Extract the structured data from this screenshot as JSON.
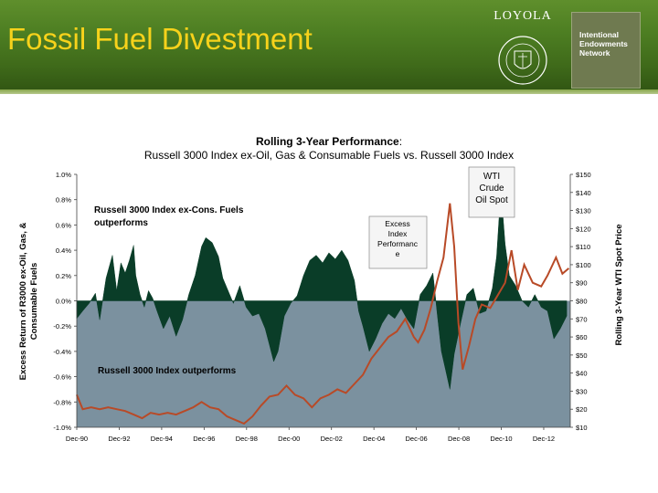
{
  "slide": {
    "title": "Fossil Fuel Divestment",
    "logo_text": "LOYOLA",
    "partner_text": "Intentional\nEndowments\nNetwork"
  },
  "colors": {
    "banner": "#4d7e22",
    "title": "#f7d21b",
    "excess_area": "#0a3d28",
    "plot_bg": "#7b919f",
    "oil_line": "#b84a27"
  },
  "chart_data": {
    "type": "area",
    "title_bold": "Rolling 3-Year Performance",
    "title_rest": ":",
    "subtitle": "Russell 3000 Index ex-Oil, Gas & Consumable Fuels vs. Russell 3000 Index",
    "ylabel_left": "Excess Return of R3000 ex-Oil, Gas, & Consumable Fuels",
    "ylabel_right": "Rolling 3-Year WTI Spot Price",
    "x_ticks": [
      "Dec-90",
      "Dec-92",
      "Dec-94",
      "Dec-96",
      "Dec-98",
      "Dec-00",
      "Dec-02",
      "Dec-04",
      "Dec-06",
      "Dec-08",
      "Dec-10",
      "Dec-12"
    ],
    "x_range": [
      1990.92,
      2014.17
    ],
    "y_left_ticks": [
      "1.0%",
      "0.8%",
      "0.6%",
      "0.4%",
      "0.2%",
      "0.0%",
      "-0.2%",
      "-0.4%",
      "-0.6%",
      "-0.8%",
      "-1.0%"
    ],
    "y_left_range": [
      -1.0,
      1.0
    ],
    "y_right_ticks": [
      "$150",
      "$140",
      "$130",
      "$120",
      "$110",
      "$100",
      "$90",
      "$80",
      "$70",
      "$60",
      "$50",
      "$40",
      "$30",
      "$20",
      "$10"
    ],
    "y_right_range": [
      10,
      150
    ],
    "annotations": {
      "upper_region": "Russell 3000 Index ex-Cons. Fuels outperforms",
      "lower_region": "Russell 3000 Index outperforms",
      "series_excess_box": "Excess Index Performance",
      "series_oil_box": "WTI Crude Oil Spot"
    },
    "series": [
      {
        "name": "Excess Index Performance",
        "axis": "left",
        "points": [
          [
            1990.92,
            -0.14
          ],
          [
            1991.2,
            -0.08
          ],
          [
            1991.5,
            -0.02
          ],
          [
            1991.8,
            0.06
          ],
          [
            1992.0,
            -0.15
          ],
          [
            1992.3,
            0.18
          ],
          [
            1992.6,
            0.36
          ],
          [
            1992.8,
            0.08
          ],
          [
            1993.0,
            0.3
          ],
          [
            1993.2,
            0.22
          ],
          [
            1993.4,
            0.32
          ],
          [
            1993.6,
            0.44
          ],
          [
            1993.7,
            0.2
          ],
          [
            1993.9,
            0.05
          ],
          [
            1994.1,
            -0.05
          ],
          [
            1994.3,
            0.08
          ],
          [
            1994.5,
            0.02
          ],
          [
            1994.7,
            -0.08
          ],
          [
            1995.0,
            -0.22
          ],
          [
            1995.3,
            -0.12
          ],
          [
            1995.6,
            -0.28
          ],
          [
            1995.9,
            -0.15
          ],
          [
            1996.2,
            0.05
          ],
          [
            1996.5,
            0.2
          ],
          [
            1996.8,
            0.43
          ],
          [
            1997.0,
            0.5
          ],
          [
            1997.3,
            0.46
          ],
          [
            1997.6,
            0.35
          ],
          [
            1997.8,
            0.18
          ],
          [
            1998.0,
            0.1
          ],
          [
            1998.3,
            -0.02
          ],
          [
            1998.6,
            0.12
          ],
          [
            1998.9,
            -0.05
          ],
          [
            1999.2,
            -0.12
          ],
          [
            1999.5,
            -0.1
          ],
          [
            1999.8,
            -0.22
          ],
          [
            2000.0,
            -0.35
          ],
          [
            2000.2,
            -0.48
          ],
          [
            2000.4,
            -0.4
          ],
          [
            2000.7,
            -0.12
          ],
          [
            2001.0,
            -0.02
          ],
          [
            2001.3,
            0.04
          ],
          [
            2001.6,
            0.2
          ],
          [
            2001.9,
            0.32
          ],
          [
            2002.2,
            0.36
          ],
          [
            2002.5,
            0.3
          ],
          [
            2002.8,
            0.38
          ],
          [
            2003.1,
            0.33
          ],
          [
            2003.4,
            0.4
          ],
          [
            2003.7,
            0.32
          ],
          [
            2004.0,
            0.16
          ],
          [
            2004.2,
            -0.08
          ],
          [
            2004.4,
            -0.2
          ],
          [
            2004.7,
            -0.4
          ],
          [
            2005.0,
            -0.3
          ],
          [
            2005.3,
            -0.18
          ],
          [
            2005.6,
            -0.1
          ],
          [
            2005.9,
            -0.14
          ],
          [
            2006.2,
            -0.06
          ],
          [
            2006.5,
            -0.15
          ],
          [
            2006.8,
            -0.22
          ],
          [
            2007.1,
            0.05
          ],
          [
            2007.4,
            0.12
          ],
          [
            2007.7,
            0.22
          ],
          [
            2007.9,
            -0.1
          ],
          [
            2008.1,
            -0.4
          ],
          [
            2008.3,
            -0.55
          ],
          [
            2008.5,
            -0.7
          ],
          [
            2008.7,
            -0.42
          ],
          [
            2009.0,
            -0.18
          ],
          [
            2009.3,
            0.05
          ],
          [
            2009.6,
            0.1
          ],
          [
            2009.9,
            -0.1
          ],
          [
            2010.2,
            -0.08
          ],
          [
            2010.5,
            0.1
          ],
          [
            2010.7,
            0.35
          ],
          [
            2010.9,
            0.88
          ],
          [
            2011.1,
            0.45
          ],
          [
            2011.3,
            0.2
          ],
          [
            2011.6,
            0.12
          ],
          [
            2011.9,
            0.0
          ],
          [
            2012.2,
            -0.05
          ],
          [
            2012.5,
            0.05
          ],
          [
            2012.8,
            -0.05
          ],
          [
            2013.1,
            -0.08
          ],
          [
            2013.4,
            -0.3
          ],
          [
            2013.7,
            -0.22
          ],
          [
            2014.0,
            -0.12
          ]
        ]
      },
      {
        "name": "WTI Crude Oil Spot",
        "axis": "right",
        "points": [
          [
            1990.92,
            28
          ],
          [
            1991.2,
            20
          ],
          [
            1991.6,
            21
          ],
          [
            1992.0,
            20
          ],
          [
            1992.4,
            21
          ],
          [
            1992.8,
            20
          ],
          [
            1993.2,
            19
          ],
          [
            1993.6,
            17
          ],
          [
            1994.0,
            15
          ],
          [
            1994.4,
            18
          ],
          [
            1994.8,
            17
          ],
          [
            1995.2,
            18
          ],
          [
            1995.6,
            17
          ],
          [
            1996.0,
            19
          ],
          [
            1996.4,
            21
          ],
          [
            1996.8,
            24
          ],
          [
            1997.2,
            21
          ],
          [
            1997.6,
            20
          ],
          [
            1998.0,
            16
          ],
          [
            1998.4,
            14
          ],
          [
            1998.8,
            12
          ],
          [
            1999.2,
            16
          ],
          [
            1999.6,
            22
          ],
          [
            2000.0,
            27
          ],
          [
            2000.4,
            28
          ],
          [
            2000.8,
            33
          ],
          [
            2001.2,
            28
          ],
          [
            2001.6,
            26
          ],
          [
            2002.0,
            21
          ],
          [
            2002.4,
            26
          ],
          [
            2002.8,
            28
          ],
          [
            2003.2,
            31
          ],
          [
            2003.6,
            29
          ],
          [
            2004.0,
            34
          ],
          [
            2004.4,
            39
          ],
          [
            2004.8,
            48
          ],
          [
            2005.2,
            54
          ],
          [
            2005.6,
            60
          ],
          [
            2006.0,
            63
          ],
          [
            2006.4,
            70
          ],
          [
            2006.8,
            60
          ],
          [
            2007.0,
            57
          ],
          [
            2007.3,
            64
          ],
          [
            2007.6,
            76
          ],
          [
            2007.9,
            91
          ],
          [
            2008.2,
            104
          ],
          [
            2008.5,
            134
          ],
          [
            2008.7,
            110
          ],
          [
            2008.9,
            68
          ],
          [
            2009.1,
            42
          ],
          [
            2009.4,
            55
          ],
          [
            2009.7,
            70
          ],
          [
            2010.0,
            78
          ],
          [
            2010.4,
            76
          ],
          [
            2010.8,
            84
          ],
          [
            2011.1,
            90
          ],
          [
            2011.4,
            108
          ],
          [
            2011.7,
            86
          ],
          [
            2012.0,
            100
          ],
          [
            2012.4,
            90
          ],
          [
            2012.8,
            88
          ],
          [
            2013.1,
            94
          ],
          [
            2013.5,
            104
          ],
          [
            2013.8,
            95
          ],
          [
            2014.1,
            98
          ]
        ]
      }
    ]
  }
}
